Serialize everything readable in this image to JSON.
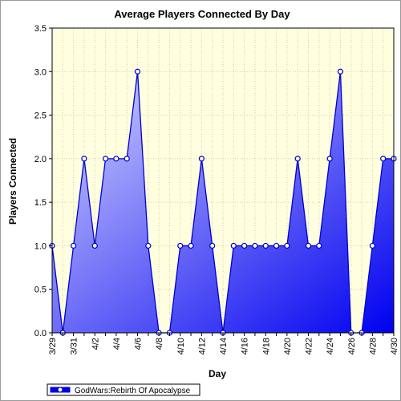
{
  "chart_data": {
    "type": "area",
    "title": "Average Players Connected By Day",
    "xlabel": "Day",
    "ylabel": "Players Connected",
    "ylim": [
      0,
      3.5
    ],
    "y_ticks": [
      "0.0",
      "0.5",
      "1.0",
      "1.5",
      "2.0",
      "2.5",
      "3.0",
      "3.5"
    ],
    "x_tick_labels": [
      "3/29",
      "3/31",
      "4/2",
      "4/4",
      "4/6",
      "4/8",
      "4/10",
      "4/12",
      "4/14",
      "4/16",
      "4/18",
      "4/20",
      "4/22",
      "4/24",
      "4/26",
      "4/28",
      "4/30"
    ],
    "categories": [
      "3/29",
      "3/30",
      "3/31",
      "4/1",
      "4/2",
      "4/3",
      "4/4",
      "4/5",
      "4/6",
      "4/7",
      "4/8",
      "4/9",
      "4/10",
      "4/11",
      "4/12",
      "4/13",
      "4/14",
      "4/15",
      "4/16",
      "4/17",
      "4/18",
      "4/19",
      "4/20",
      "4/21",
      "4/22",
      "4/23",
      "4/24",
      "4/25",
      "4/26",
      "4/27",
      "4/28",
      "4/29",
      "4/30"
    ],
    "series": [
      {
        "name": "GodWars:Rebirth Of Apocalypse",
        "values": [
          1,
          0,
          1,
          2,
          1,
          2,
          2,
          2,
          3,
          1,
          0,
          0,
          1,
          1,
          2,
          1,
          0,
          1,
          1,
          1,
          1,
          1,
          1,
          2,
          1,
          1,
          2,
          3,
          0,
          0,
          1,
          2,
          2
        ]
      }
    ],
    "grid": true,
    "legend_position": "bottom-left"
  },
  "colors": {
    "plot_bg": "#FFFFE0",
    "line": "#0000CC",
    "fill_light": "#D8D8FF",
    "fill_dark": "#0000F0",
    "marker_fill": "#FFFFFF",
    "grid": "#CFCFAF"
  }
}
